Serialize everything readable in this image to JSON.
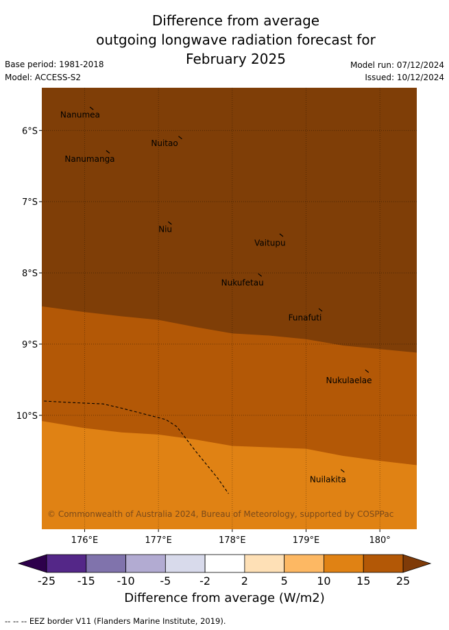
{
  "title": {
    "line1": "Difference from average",
    "line2": "outgoing longwave radiation forecast for",
    "line3": "February 2025"
  },
  "meta": {
    "base_period": "Base period: 1981-2018",
    "model": "Model: ACCESS-S2",
    "model_run": "Model run: 07/12/2024",
    "issued": "Issued: 10/12/2024"
  },
  "map": {
    "lon_range": [
      175.42,
      180.5
    ],
    "lat_range": [
      -11.6,
      -5.4
    ],
    "lon_ticks": [
      {
        "value": 176,
        "label": "176°E"
      },
      {
        "value": 177,
        "label": "177°E"
      },
      {
        "value": 178,
        "label": "178°E"
      },
      {
        "value": 179,
        "label": "179°E"
      },
      {
        "value": 180,
        "label": "180°"
      }
    ],
    "lat_ticks": [
      {
        "value": -6,
        "label": "6°S"
      },
      {
        "value": -7,
        "label": "7°S"
      },
      {
        "value": -8,
        "label": "8°S"
      },
      {
        "value": -9,
        "label": "9°S"
      },
      {
        "value": -10,
        "label": "10°S"
      }
    ],
    "grid": true,
    "bands": [
      {
        "color": "#7f3e07",
        "category": "15 to 25"
      },
      {
        "color": "#b35806",
        "category": "10 to 15"
      },
      {
        "color": "#e08214",
        "category": "5 to 10"
      }
    ],
    "boundary_15": [
      [
        175.42,
        -8.47
      ],
      [
        176.0,
        -8.55
      ],
      [
        176.5,
        -8.61
      ],
      [
        177.0,
        -8.66
      ],
      [
        177.5,
        -8.76
      ],
      [
        178.0,
        -8.85
      ],
      [
        178.5,
        -8.88
      ],
      [
        179.0,
        -8.93
      ],
      [
        179.5,
        -9.02
      ],
      [
        180.0,
        -9.07
      ],
      [
        180.5,
        -9.12
      ]
    ],
    "boundary_10": [
      [
        175.42,
        -10.08
      ],
      [
        176.0,
        -10.18
      ],
      [
        176.5,
        -10.24
      ],
      [
        177.0,
        -10.27
      ],
      [
        177.5,
        -10.34
      ],
      [
        178.0,
        -10.43
      ],
      [
        178.5,
        -10.45
      ],
      [
        179.0,
        -10.47
      ],
      [
        179.5,
        -10.57
      ],
      [
        180.0,
        -10.64
      ],
      [
        180.5,
        -10.7
      ]
    ],
    "eez_border": [
      [
        175.45,
        -9.8
      ],
      [
        175.8,
        -9.82
      ],
      [
        176.25,
        -9.84
      ],
      [
        176.5,
        -9.9
      ],
      [
        176.8,
        -9.98
      ],
      [
        177.1,
        -10.06
      ],
      [
        177.25,
        -10.16
      ],
      [
        177.5,
        -10.5
      ],
      [
        177.8,
        -10.88
      ],
      [
        177.95,
        -11.1
      ]
    ],
    "islands": [
      {
        "name": "Nanumea",
        "lon": 176.1,
        "lat": -5.69,
        "label_lon": 175.67,
        "label_lat": -5.78
      },
      {
        "name": "Nuitao",
        "lon": 177.3,
        "lat": -6.1,
        "label_lon": 176.9,
        "label_lat": -6.18
      },
      {
        "name": "Nanumanga",
        "lon": 176.32,
        "lat": -6.3,
        "label_lon": 175.73,
        "label_lat": -6.4
      },
      {
        "name": "Niu",
        "lon": 177.16,
        "lat": -7.3,
        "label_lon": 177.0,
        "label_lat": -7.39
      },
      {
        "name": "Vaitupu",
        "lon": 178.67,
        "lat": -7.47,
        "label_lon": 178.3,
        "label_lat": -7.58
      },
      {
        "name": "Nukufetau",
        "lon": 178.38,
        "lat": -8.03,
        "label_lon": 177.85,
        "label_lat": -8.14
      },
      {
        "name": "Funafuti",
        "lon": 179.2,
        "lat": -8.52,
        "label_lon": 178.76,
        "label_lat": -8.63
      },
      {
        "name": "Nukulaelae",
        "lon": 179.83,
        "lat": -9.38,
        "label_lon": 179.27,
        "label_lat": -9.51
      },
      {
        "name": "Nuilakita",
        "lon": 179.5,
        "lat": -10.78,
        "label_lon": 179.05,
        "label_lat": -10.9
      }
    ],
    "copyright": "© Commonwealth of Australia 2024, Bureau of Meteorology, supported by COSPPac"
  },
  "colorbar": {
    "label": "Difference from average (W/m2)",
    "ticks": [
      "-25",
      "-15",
      "-10",
      "-5",
      "-2",
      "2",
      "5",
      "10",
      "15",
      "25"
    ],
    "low_extend_color": "#2d004b",
    "high_extend_color": "#7f3b08",
    "colors": [
      "#542788",
      "#8073ac",
      "#b2abd2",
      "#d8daeb",
      "#ffffff",
      "#fee0b6",
      "#fdb863",
      "#e08214",
      "#b35806"
    ]
  },
  "footer": {
    "eez_legend": "-- -- -- EEZ border V11 (Flanders Marine Institute, 2019)."
  }
}
